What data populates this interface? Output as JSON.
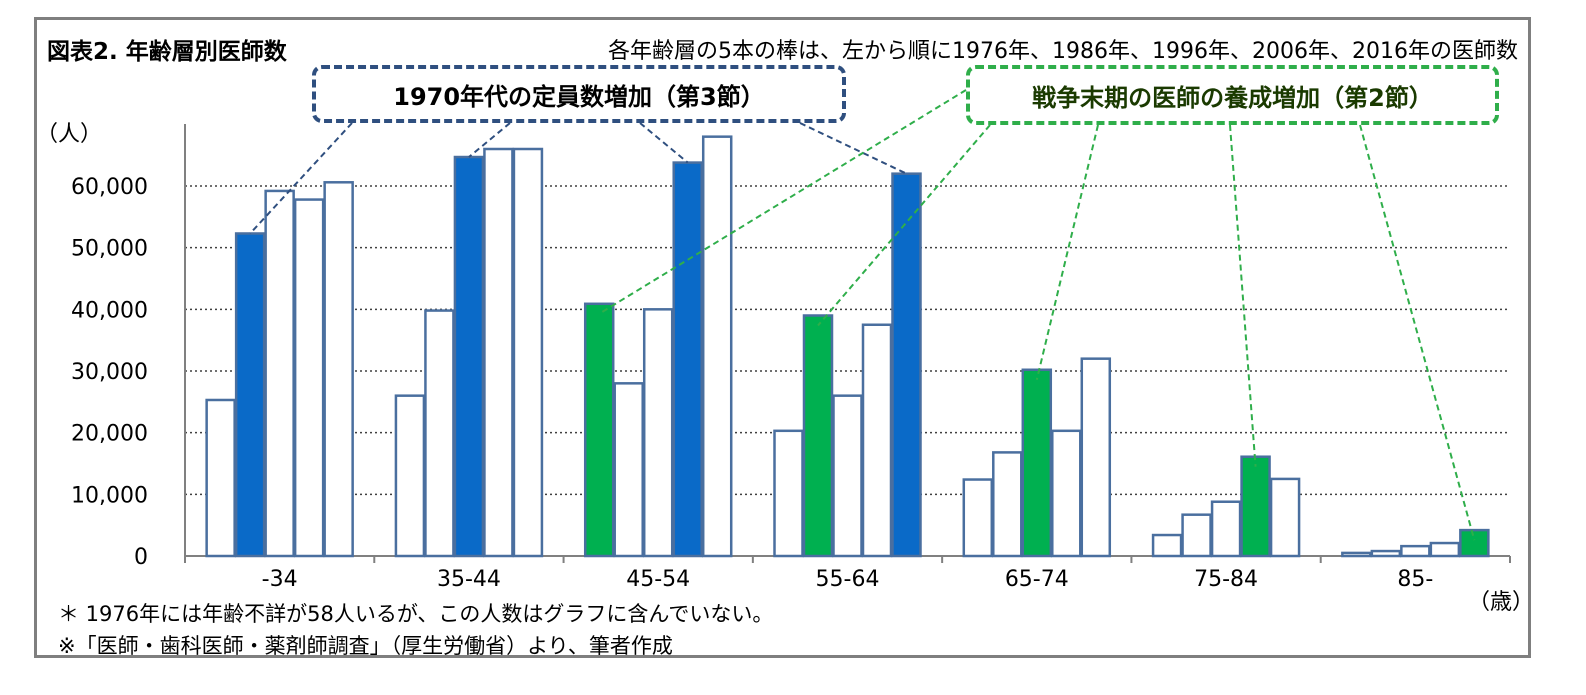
{
  "title": "図表2.  年齢層別医師数",
  "subtitle": "各年齢層の5本の棒は、左から順に1976年、1986年、1996年、2006年、2016年の医師数",
  "callouts": {
    "blue": "1970年代の定員数増加（第3節）",
    "green": "戦争末期の医師の養成増加（第2節）"
  },
  "y_unit": "（人）",
  "x_unit": "（歳）",
  "notes": [
    "＊  1976年には年齢不詳が58人いるが、この人数はグラフに含んでいない。",
    "※「医師・歯科医師・薬剤師調査」（厚生労働省）より、筆者作成"
  ],
  "colors": {
    "bar_outline": "#4a6f9f",
    "highlight_blue": "#0a6ac8",
    "highlight_green": "#00b050",
    "plain_fill": "#ffffff",
    "blue_callout": "#2f4f7f",
    "green_callout": "#2fae4a"
  },
  "chart_data": {
    "type": "bar",
    "categories": [
      "-34",
      "35-44",
      "45-54",
      "55-64",
      "65-74",
      "75-84",
      "85-"
    ],
    "ylim": [
      0,
      70000
    ],
    "yticks": [
      "0",
      "10,000",
      "20,000",
      "30,000",
      "40,000",
      "50,000",
      "60,000"
    ],
    "grid": "horizontal dotted",
    "series": [
      {
        "name": "1976年",
        "values": [
          25300,
          26000,
          40900,
          20300,
          12400,
          3400,
          500
        ]
      },
      {
        "name": "1986年",
        "values": [
          52300,
          39800,
          28000,
          39000,
          16800,
          6700,
          800
        ]
      },
      {
        "name": "1996年",
        "values": [
          59200,
          64700,
          40000,
          26000,
          30200,
          8800,
          1600
        ]
      },
      {
        "name": "2006年",
        "values": [
          57800,
          66000,
          63800,
          37500,
          20300,
          16100,
          2100
        ]
      },
      {
        "name": "2016年",
        "values": [
          60600,
          66000,
          68000,
          62000,
          32000,
          12500,
          4200
        ]
      }
    ],
    "highlights": {
      "blue": [
        [
          0,
          1
        ],
        [
          1,
          2
        ],
        [
          2,
          3
        ],
        [
          3,
          4
        ]
      ],
      "green": [
        [
          2,
          0
        ],
        [
          3,
          1
        ],
        [
          4,
          2
        ],
        [
          5,
          3
        ],
        [
          6,
          4
        ]
      ]
    }
  }
}
